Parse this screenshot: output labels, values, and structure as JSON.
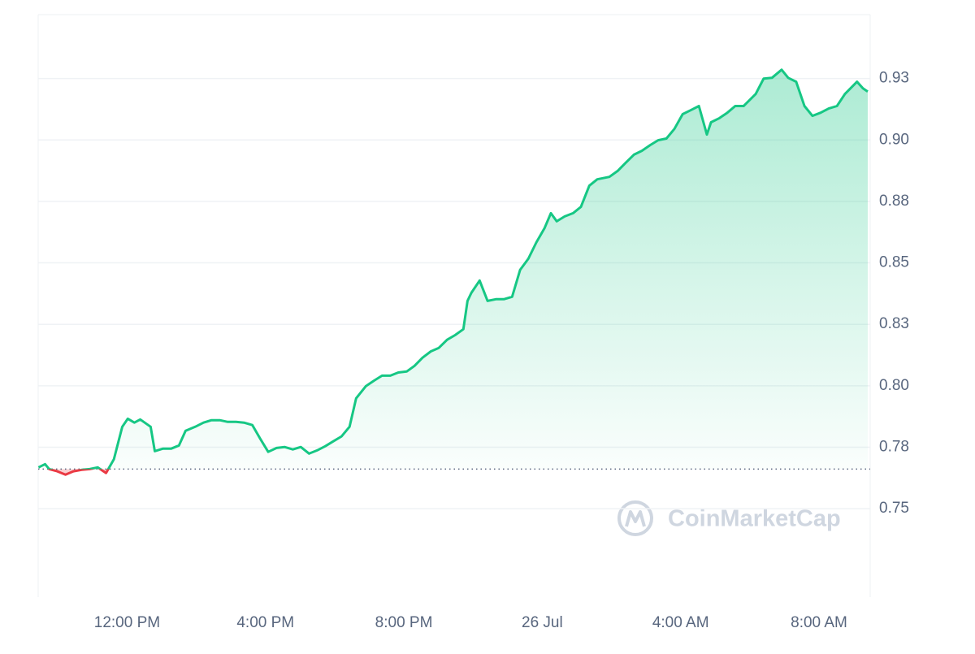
{
  "chart_data": {
    "type": "line",
    "x": [
      9.44,
      9.63,
      9.75,
      9.98,
      10.22,
      10.45,
      10.69,
      10.92,
      11.15,
      11.39,
      11.62,
      11.86,
      12.02,
      12.21,
      12.38,
      12.68,
      12.8,
      13.03,
      13.27,
      13.5,
      13.69,
      13.97,
      14.21,
      14.44,
      14.68,
      14.91,
      15.15,
      15.38,
      15.62,
      15.85,
      16.08,
      16.32,
      16.55,
      16.79,
      17.02,
      17.26,
      17.49,
      17.73,
      17.96,
      18.2,
      18.43,
      18.62,
      18.9,
      19.14,
      19.37,
      19.61,
      19.84,
      20.08,
      20.31,
      20.54,
      20.78,
      21.01,
      21.25,
      21.48,
      21.72,
      21.84,
      21.95,
      22.19,
      22.42,
      22.66,
      22.89,
      23.13,
      23.36,
      23.6,
      23.83,
      24.07,
      24.25,
      24.42,
      24.65,
      24.89,
      25.12,
      25.36,
      25.59,
      25.94,
      26.18,
      26.41,
      26.65,
      26.88,
      27.12,
      27.35,
      27.59,
      27.82,
      28.06,
      28.29,
      28.53,
      28.76,
      28.88,
      29.11,
      29.35,
      29.58,
      29.82,
      30.17,
      30.4,
      30.64,
      30.92,
      31.11,
      31.34,
      31.58,
      31.81,
      32.05,
      32.28,
      32.52,
      32.75,
      33.1,
      33.27,
      33.41
    ],
    "values": [
      0.7668,
      0.7681,
      0.7661,
      0.7652,
      0.7638,
      0.7652,
      0.7658,
      0.7661,
      0.7668,
      0.7645,
      0.7701,
      0.7833,
      0.7866,
      0.785,
      0.7863,
      0.7833,
      0.7734,
      0.7744,
      0.7744,
      0.7757,
      0.7817,
      0.7833,
      0.785,
      0.786,
      0.786,
      0.7853,
      0.7853,
      0.785,
      0.784,
      0.7784,
      0.7731,
      0.7747,
      0.7751,
      0.7741,
      0.7751,
      0.7724,
      0.7737,
      0.7754,
      0.7774,
      0.7794,
      0.7833,
      0.7949,
      0.7998,
      0.8021,
      0.8041,
      0.8041,
      0.8054,
      0.8058,
      0.8081,
      0.8114,
      0.814,
      0.8154,
      0.8187,
      0.8206,
      0.823,
      0.8345,
      0.8378,
      0.8428,
      0.8345,
      0.8352,
      0.8352,
      0.8362,
      0.8471,
      0.8517,
      0.8583,
      0.8642,
      0.8702,
      0.8669,
      0.8689,
      0.8702,
      0.8728,
      0.8814,
      0.884,
      0.885,
      0.8874,
      0.8907,
      0.894,
      0.8956,
      0.8979,
      0.8999,
      0.9006,
      0.9045,
      0.9105,
      0.9121,
      0.9138,
      0.9022,
      0.9072,
      0.9088,
      0.9111,
      0.9138,
      0.9138,
      0.9187,
      0.925,
      0.9253,
      0.9286,
      0.9253,
      0.9237,
      0.9138,
      0.9098,
      0.9111,
      0.9128,
      0.9138,
      0.9187,
      0.9237,
      0.921,
      0.9197
    ],
    "baseline": 0.7661,
    "color_up": "#16c784",
    "color_down": "#ea3943",
    "xlim": [
      9.43,
      33.48
    ],
    "xticks": [
      {
        "value": 12,
        "label": "12:00 PM"
      },
      {
        "value": 16,
        "label": "4:00 PM"
      },
      {
        "value": 20,
        "label": "8:00 PM"
      },
      {
        "value": 24,
        "label": "26 Jul"
      },
      {
        "value": 28,
        "label": "4:00 AM"
      },
      {
        "value": 32,
        "label": "8:00 AM"
      }
    ],
    "ylim": [
      0.714,
      0.951
    ],
    "yticks": [
      0.75,
      {
        "value": 0.775,
        "label": "0.78"
      },
      {
        "value": 0.8,
        "label": "0.80"
      },
      {
        "value": 0.825,
        "label": "0.83"
      },
      0.85,
      {
        "value": 0.875,
        "label": "0.88"
      },
      {
        "value": 0.9,
        "label": "0.90"
      },
      {
        "value": 0.925,
        "label": "0.93"
      }
    ],
    "grid": true,
    "watermark": "CoinMarketCap"
  }
}
